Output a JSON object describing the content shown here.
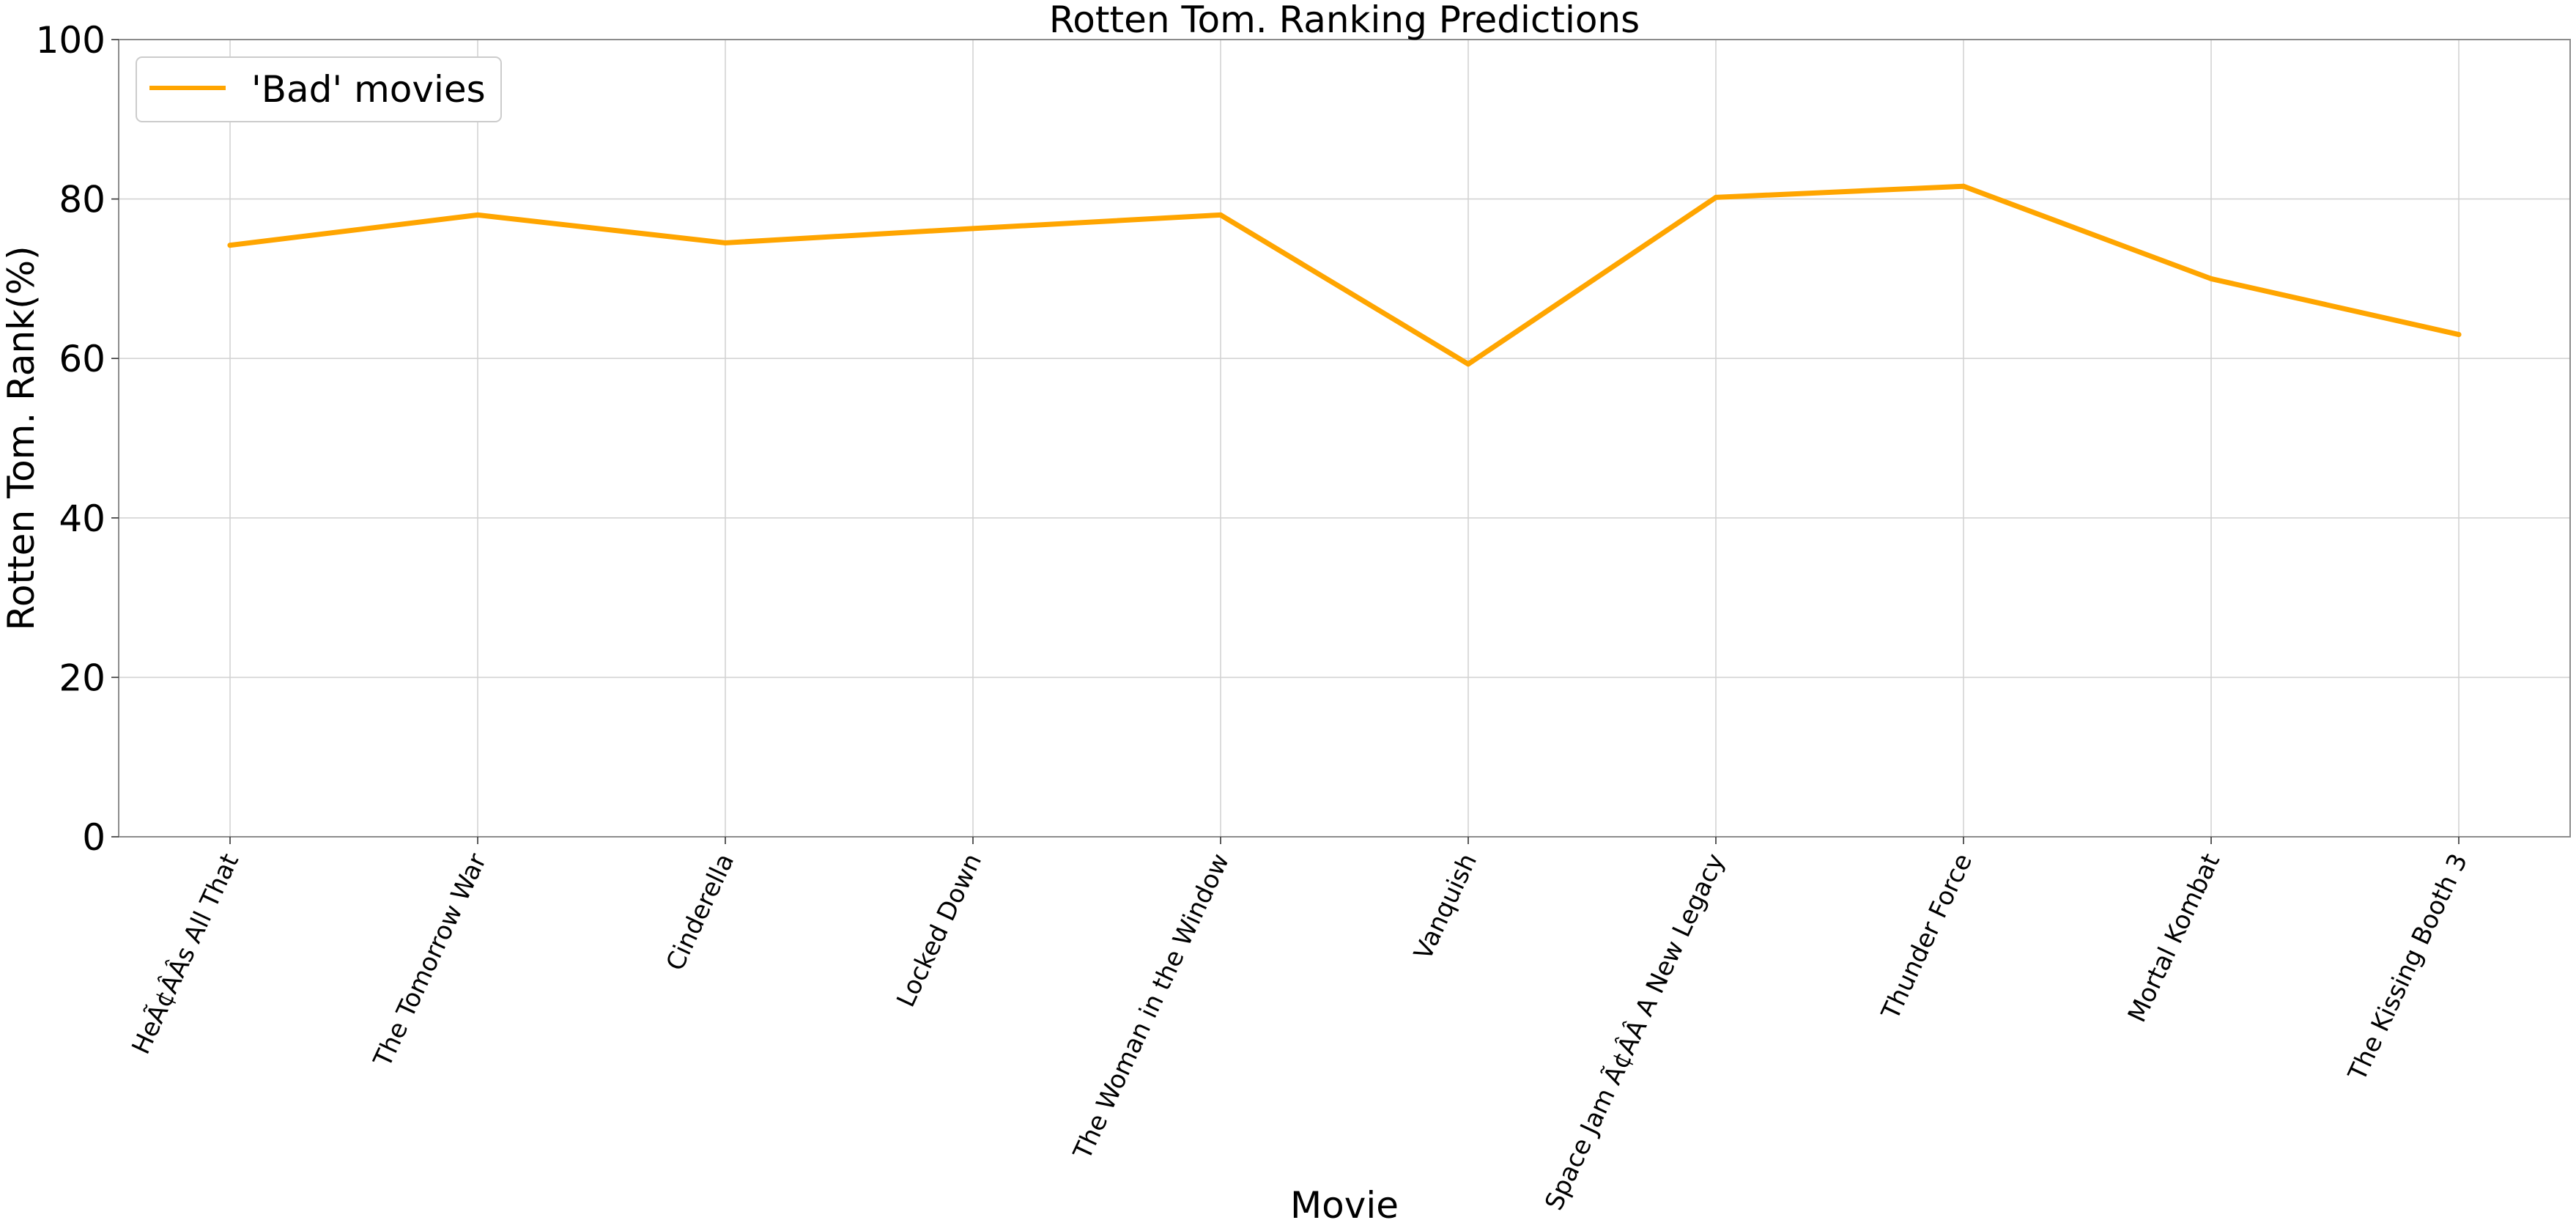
{
  "chart_data": {
    "type": "line",
    "title": "Rotten Tom. Ranking Predictions",
    "xlabel": "Movie",
    "ylabel": "Rotten Tom. Rank(%)",
    "categories": [
      "HeÃ¢ÂÂs All That",
      "The Tomorrow War",
      "Cinderella",
      "Locked Down",
      "The Woman in the Window",
      "Vanquish",
      "Space Jam Ã¢ÂÂ A New Legacy",
      "Thunder Force",
      "Mortal Kombat",
      "The Kissing Booth 3"
    ],
    "series": [
      {
        "name": "'Bad' movies",
        "color": "#ffa500",
        "values": [
          74.2,
          78.0,
          74.5,
          76.3,
          78.0,
          59.3,
          80.2,
          81.6,
          70.0,
          63.0
        ]
      }
    ],
    "ylim": [
      0,
      100
    ],
    "yticks": [
      0,
      20,
      40,
      60,
      80,
      100
    ],
    "grid": true,
    "legend_position": "top-left"
  }
}
